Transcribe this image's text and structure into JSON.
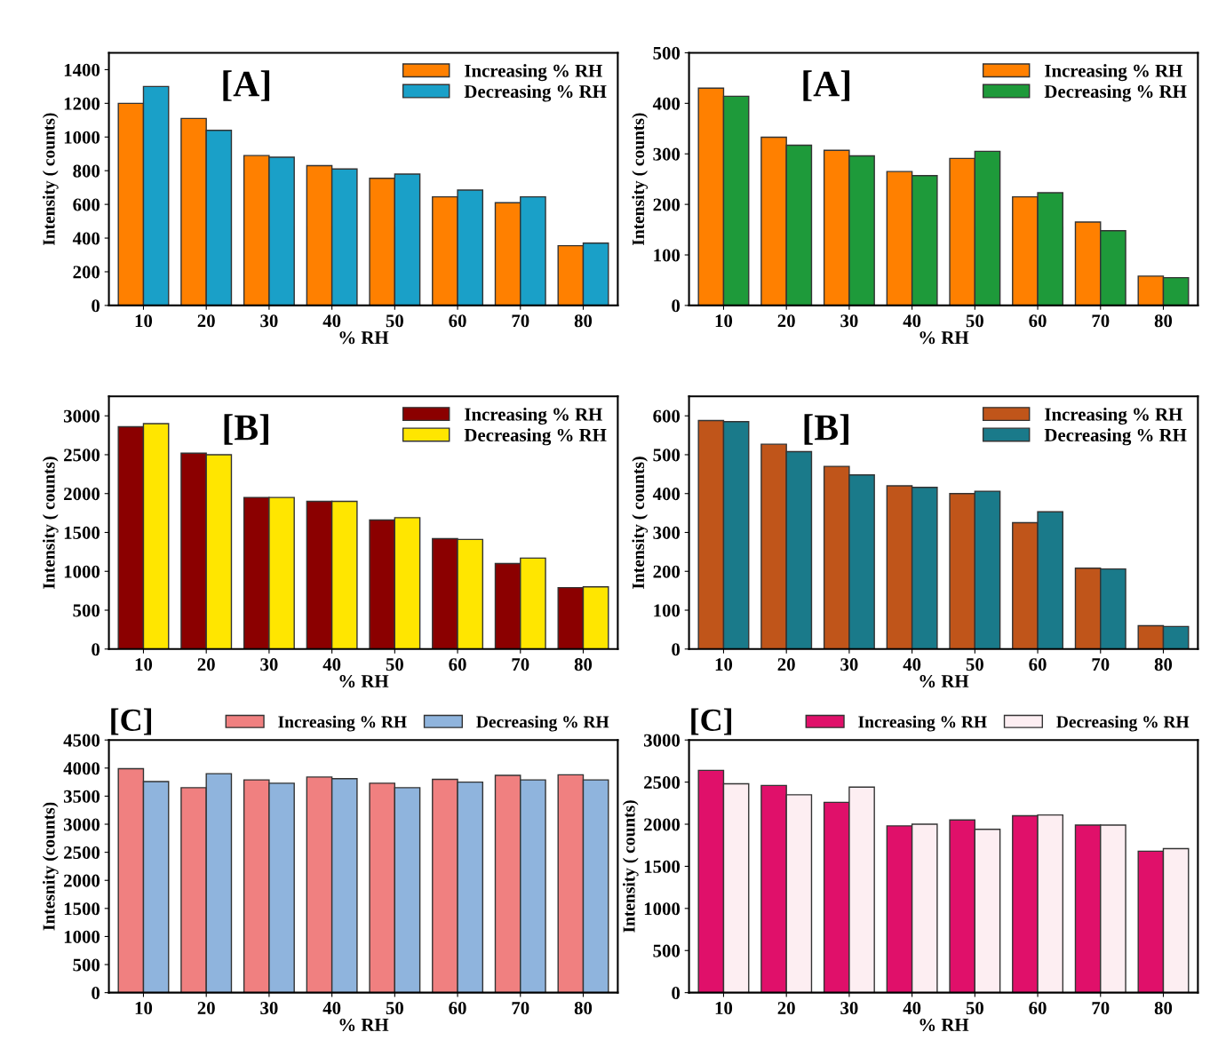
{
  "chart_data": [
    {
      "type": "bar",
      "annotations": [
        "[A]"
      ],
      "xlabel": "% RH",
      "ylabel": "Intensity ( counts)",
      "categories": [
        "10",
        "20",
        "30",
        "40",
        "50",
        "60",
        "70",
        "80"
      ],
      "ylim": [
        0,
        1500
      ],
      "yticks": [
        0,
        200,
        400,
        600,
        800,
        1000,
        1200,
        1400
      ],
      "legend": "top right",
      "series": [
        {
          "name": "Increasing % RH",
          "color": "#ff8000",
          "values": [
            1200,
            1110,
            890,
            830,
            755,
            645,
            610,
            355
          ]
        },
        {
          "name": "Decreasing % RH",
          "color": "#1aa0c8",
          "values": [
            1300,
            1040,
            880,
            810,
            780,
            685,
            645,
            370
          ]
        }
      ]
    },
    {
      "type": "bar",
      "annotations": [
        "[A]"
      ],
      "xlabel": "% RH",
      "ylabel": "Intensity ( counts)",
      "categories": [
        "10",
        "20",
        "30",
        "40",
        "50",
        "60",
        "70",
        "80"
      ],
      "ylim": [
        0,
        500
      ],
      "yticks": [
        0,
        100,
        200,
        300,
        400,
        500
      ],
      "legend": "top right",
      "series": [
        {
          "name": "Increasing % RH",
          "color": "#ff8000",
          "values": [
            430,
            333,
            307,
            265,
            291,
            215,
            165,
            58
          ]
        },
        {
          "name": "Decreasing % RH",
          "color": "#1e9a3a",
          "values": [
            414,
            317,
            296,
            257,
            305,
            223,
            148,
            55
          ]
        }
      ]
    },
    {
      "type": "bar",
      "annotations": [
        "[B]"
      ],
      "xlabel": "% RH",
      "ylabel": "Intensity ( counts)",
      "categories": [
        "10",
        "20",
        "30",
        "40",
        "50",
        "60",
        "70",
        "80"
      ],
      "ylim": [
        0,
        3250
      ],
      "yticks": [
        0,
        500,
        1000,
        1500,
        2000,
        2500,
        3000
      ],
      "legend": "top right",
      "series": [
        {
          "name": "Increasing % RH",
          "color": "#8b0000",
          "values": [
            2860,
            2520,
            1950,
            1900,
            1660,
            1420,
            1100,
            790
          ]
        },
        {
          "name": "Decreasing % RH",
          "color": "#ffe600",
          "values": [
            2900,
            2500,
            1950,
            1900,
            1690,
            1410,
            1170,
            800
          ]
        }
      ]
    },
    {
      "type": "bar",
      "annotations": [
        "[B]"
      ],
      "xlabel": "% RH",
      "ylabel": "Intensity ( counts)",
      "categories": [
        "10",
        "20",
        "30",
        "40",
        "50",
        "60",
        "70",
        "80"
      ],
      "ylim": [
        0,
        650
      ],
      "yticks": [
        0,
        100,
        200,
        300,
        400,
        500,
        600
      ],
      "legend": "top right",
      "series": [
        {
          "name": "Increasing % RH",
          "color": "#c0551a",
          "values": [
            588,
            527,
            470,
            420,
            400,
            325,
            208,
            60
          ]
        },
        {
          "name": "Decreasing % RH",
          "color": "#1a7a8a",
          "values": [
            585,
            508,
            448,
            416,
            406,
            353,
            206,
            58
          ]
        }
      ]
    },
    {
      "type": "bar",
      "annotations": [
        "[C]"
      ],
      "xlabel": "% RH",
      "ylabel": "Intesnity (counts)",
      "categories": [
        "10",
        "20",
        "30",
        "40",
        "50",
        "60",
        "70",
        "80"
      ],
      "ylim": [
        0,
        4500
      ],
      "yticks": [
        0,
        500,
        1000,
        1500,
        2000,
        2500,
        3000,
        3500,
        4000,
        4500
      ],
      "legend": "top right",
      "series": [
        {
          "name": "Increasing % RH",
          "color": "#f08080",
          "values": [
            3990,
            3650,
            3790,
            3840,
            3730,
            3800,
            3870,
            3880
          ]
        },
        {
          "name": "Decreasing % RH",
          "color": "#8fb4dd",
          "values": [
            3760,
            3900,
            3730,
            3810,
            3650,
            3750,
            3790,
            3790
          ]
        }
      ]
    },
    {
      "type": "bar",
      "annotations": [
        "[C]"
      ],
      "xlabel": "% RH",
      "ylabel": "Intensity ( counts)",
      "categories": [
        "10",
        "20",
        "30",
        "40",
        "50",
        "60",
        "70",
        "80"
      ],
      "ylim": [
        0,
        3000
      ],
      "yticks": [
        0,
        500,
        1000,
        1500,
        2000,
        2500,
        3000
      ],
      "legend": "top right",
      "series": [
        {
          "name": "Increasing % RH",
          "color": "#e0106a",
          "values": [
            2640,
            2460,
            2260,
            1980,
            2050,
            2100,
            1990,
            1680
          ]
        },
        {
          "name": "Decreasing % RH",
          "color": "#fdeef2",
          "values": [
            2480,
            2350,
            2440,
            2000,
            1940,
            2110,
            1990,
            1710
          ]
        }
      ]
    }
  ]
}
